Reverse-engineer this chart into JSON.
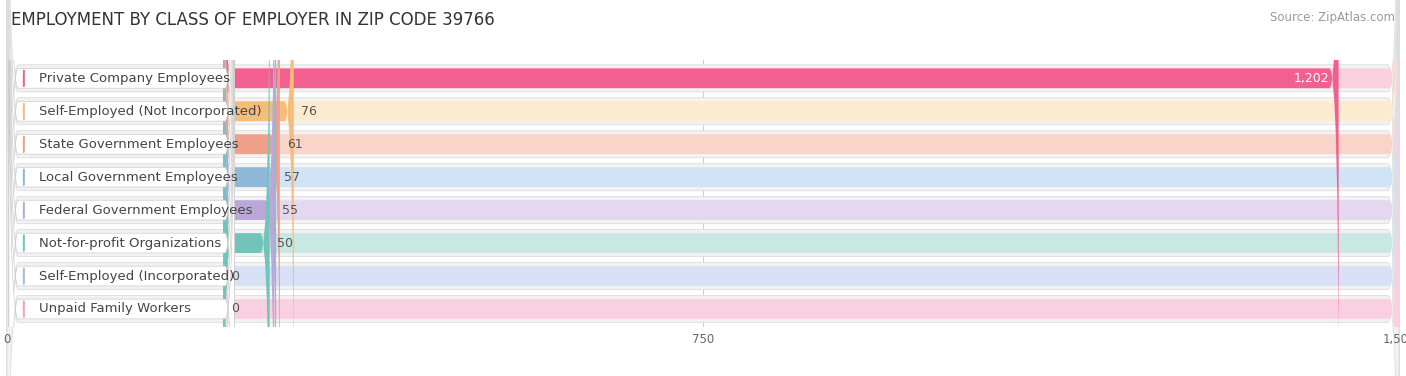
{
  "title": "EMPLOYMENT BY CLASS OF EMPLOYER IN ZIP CODE 39766",
  "source": "Source: ZipAtlas.com",
  "categories": [
    "Private Company Employees",
    "Self-Employed (Not Incorporated)",
    "State Government Employees",
    "Local Government Employees",
    "Federal Government Employees",
    "Not-for-profit Organizations",
    "Self-Employed (Incorporated)",
    "Unpaid Family Workers"
  ],
  "values": [
    1202,
    76,
    61,
    57,
    55,
    50,
    0,
    0
  ],
  "bar_colors": [
    "#F26090",
    "#F5BC7A",
    "#F0A08A",
    "#90B8D8",
    "#BBA8D8",
    "#70C4B8",
    "#A8B8E0",
    "#F5A0BC"
  ],
  "bar_bg_colors": [
    "#FAD0DC",
    "#FDEBD0",
    "#F8D5C8",
    "#D0E4F5",
    "#E4D8F0",
    "#C8E8E4",
    "#D8E0F5",
    "#FAD0E0"
  ],
  "circle_colors": [
    "#F26090",
    "#F5BC7A",
    "#F0A08A",
    "#90B8D8",
    "#BBA8D8",
    "#70C4B8",
    "#A8B8E0",
    "#F5A0BC"
  ],
  "xlim": [
    0,
    1500
  ],
  "xticks": [
    0,
    750,
    1500
  ],
  "background_color": "#FFFFFF",
  "title_fontsize": 12,
  "source_fontsize": 8.5,
  "bar_label_fontsize": 9,
  "category_fontsize": 9.5
}
